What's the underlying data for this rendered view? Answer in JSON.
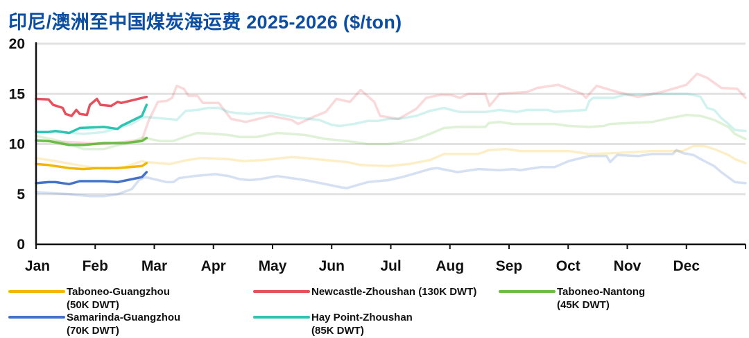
{
  "chart_data": {
    "type": "line",
    "title": "印尼/澳洲至中国煤炭海运费 2025-2026 ($/ton)",
    "xlabel": "",
    "ylabel": "",
    "ylim": [
      0,
      20
    ],
    "yticks": [
      "0",
      "5",
      "10",
      "15",
      "20"
    ],
    "xlim_months": [
      0,
      12
    ],
    "categories": [
      "Jan",
      "Feb",
      "Mar",
      "Apr",
      "May",
      "Jun",
      "Jul",
      "Aug",
      "Sep",
      "Oct",
      "Nov",
      "Dec"
    ],
    "grid": true,
    "legend_position": "bottom",
    "x_unit": "month index (0 = start of Jan)",
    "series": [
      {
        "name": "Taboneo-Guangzhou",
        "name2": "(50K DWT)",
        "color": "#f2b705",
        "year": "2026",
        "points": [
          [
            0,
            8.0
          ],
          [
            0.21,
            7.9
          ],
          [
            0.56,
            7.6
          ],
          [
            0.8,
            7.5
          ],
          [
            1.03,
            7.6
          ],
          [
            1.38,
            7.6
          ],
          [
            1.79,
            7.8
          ],
          [
            1.87,
            8.1
          ]
        ]
      },
      {
        "name": "Newcastle-Zhoushan (130K DWT)",
        "name2": "",
        "color": "#e6505c",
        "year": "2026",
        "points": [
          [
            0,
            14.5
          ],
          [
            0.21,
            14.45
          ],
          [
            0.29,
            13.9
          ],
          [
            0.45,
            13.6
          ],
          [
            0.5,
            13.0
          ],
          [
            0.6,
            12.8
          ],
          [
            0.68,
            13.4
          ],
          [
            0.74,
            13.0
          ],
          [
            0.86,
            12.9
          ],
          [
            0.91,
            13.9
          ],
          [
            1.03,
            14.5
          ],
          [
            1.09,
            13.9
          ],
          [
            1.27,
            13.8
          ],
          [
            1.38,
            14.2
          ],
          [
            1.44,
            14.1
          ],
          [
            1.87,
            14.7
          ]
        ]
      },
      {
        "name": "Taboneo-Nantong",
        "name2": "(45K DWT)",
        "color": "#6cbd45",
        "year": "2026",
        "points": [
          [
            0,
            10.35
          ],
          [
            0.21,
            10.3
          ],
          [
            0.56,
            9.9
          ],
          [
            0.8,
            9.9
          ],
          [
            1.15,
            10.1
          ],
          [
            1.5,
            10.1
          ],
          [
            1.79,
            10.3
          ],
          [
            1.87,
            10.6
          ]
        ]
      },
      {
        "name": "Samarinda-Guangzhou",
        "name2": "(70K DWT)",
        "color": "#4472c8",
        "year": "2026",
        "points": [
          [
            0,
            6.1
          ],
          [
            0.21,
            6.2
          ],
          [
            0.33,
            6.2
          ],
          [
            0.56,
            6.0
          ],
          [
            0.74,
            6.3
          ],
          [
            1.15,
            6.3
          ],
          [
            1.38,
            6.2
          ],
          [
            1.79,
            6.7
          ],
          [
            1.87,
            7.2
          ]
        ]
      },
      {
        "name": "Hay Point-Zhoushan",
        "name2": "(85K DWT)",
        "color": "#2ec4b4",
        "year": "2026",
        "points": [
          [
            0,
            11.2
          ],
          [
            0.21,
            11.2
          ],
          [
            0.33,
            11.3
          ],
          [
            0.56,
            11.1
          ],
          [
            0.74,
            11.6
          ],
          [
            1.15,
            11.7
          ],
          [
            1.38,
            11.5
          ],
          [
            1.44,
            11.8
          ],
          [
            1.79,
            12.8
          ],
          [
            1.87,
            13.9
          ]
        ]
      }
    ],
    "faded_series": [
      {
        "name": "Taboneo-Guangzhou",
        "year": "2025",
        "color": "#f2b705",
        "points": [
          [
            0,
            8.6
          ],
          [
            0.33,
            8.3
          ],
          [
            0.8,
            7.8
          ],
          [
            1.15,
            7.5
          ],
          [
            1.5,
            7.7
          ],
          [
            1.79,
            8.3
          ],
          [
            1.85,
            8.2
          ],
          [
            2.26,
            8.0
          ],
          [
            2.56,
            8.4
          ],
          [
            2.79,
            8.6
          ],
          [
            3.26,
            8.5
          ],
          [
            3.5,
            8.3
          ],
          [
            3.85,
            8.4
          ],
          [
            4.32,
            8.7
          ],
          [
            4.55,
            8.6
          ],
          [
            4.9,
            8.4
          ],
          [
            5.26,
            8.2
          ],
          [
            5.49,
            7.9
          ],
          [
            5.96,
            7.8
          ],
          [
            6.31,
            8.0
          ],
          [
            6.66,
            8.4
          ],
          [
            6.9,
            9.0
          ],
          [
            7.48,
            9.0
          ],
          [
            7.66,
            9.4
          ],
          [
            7.95,
            9.5
          ],
          [
            8.19,
            9.3
          ],
          [
            9.01,
            9.3
          ],
          [
            9.36,
            9.0
          ],
          [
            9.83,
            9.1
          ],
          [
            10.42,
            9.3
          ],
          [
            10.94,
            9.3
          ],
          [
            11.12,
            9.8
          ],
          [
            11.3,
            9.8
          ],
          [
            11.47,
            9.5
          ],
          [
            11.71,
            8.9
          ],
          [
            11.82,
            8.5
          ],
          [
            12.0,
            8.1
          ]
        ]
      },
      {
        "name": "Newcastle-Zhoushan",
        "year": "2025",
        "color": "#e6505c",
        "points": [
          [
            0,
            10.3
          ],
          [
            0.56,
            10.2
          ],
          [
            1.15,
            10.0
          ],
          [
            1.79,
            10.4
          ],
          [
            1.91,
            12.4
          ],
          [
            2.06,
            14.2
          ],
          [
            2.21,
            14.3
          ],
          [
            2.3,
            14.6
          ],
          [
            2.38,
            15.8
          ],
          [
            2.5,
            15.5
          ],
          [
            2.58,
            14.8
          ],
          [
            2.73,
            14.8
          ],
          [
            2.82,
            14.1
          ],
          [
            3.09,
            14.1
          ],
          [
            3.3,
            12.5
          ],
          [
            3.55,
            12.2
          ],
          [
            3.96,
            12.8
          ],
          [
            4.32,
            12.4
          ],
          [
            4.43,
            12.0
          ],
          [
            4.73,
            12.8
          ],
          [
            4.9,
            13.2
          ],
          [
            5.08,
            14.5
          ],
          [
            5.31,
            14.2
          ],
          [
            5.49,
            15.4
          ],
          [
            5.72,
            14.2
          ],
          [
            5.82,
            12.8
          ],
          [
            6.13,
            12.5
          ],
          [
            6.43,
            13.5
          ],
          [
            6.6,
            14.6
          ],
          [
            6.84,
            14.9
          ],
          [
            7.01,
            14.9
          ],
          [
            7.17,
            14.6
          ],
          [
            7.31,
            15.0
          ],
          [
            7.6,
            15.0
          ],
          [
            7.67,
            13.8
          ],
          [
            7.84,
            15.0
          ],
          [
            8.31,
            15.2
          ],
          [
            8.48,
            15.6
          ],
          [
            8.83,
            15.9
          ],
          [
            9.24,
            15.0
          ],
          [
            9.3,
            14.6
          ],
          [
            9.48,
            15.8
          ],
          [
            9.83,
            15.2
          ],
          [
            10.18,
            14.7
          ],
          [
            10.59,
            15.2
          ],
          [
            11.0,
            15.9
          ],
          [
            11.18,
            17.0
          ],
          [
            11.35,
            16.6
          ],
          [
            11.59,
            15.6
          ],
          [
            11.86,
            15.5
          ],
          [
            12.0,
            14.6
          ]
        ]
      },
      {
        "name": "Taboneo-Nantong",
        "year": "2025",
        "color": "#6cbd45",
        "points": [
          [
            0,
            10.8
          ],
          [
            0.33,
            10.4
          ],
          [
            0.56,
            10.0
          ],
          [
            0.8,
            9.5
          ],
          [
            1.15,
            9.5
          ],
          [
            1.33,
            9.8
          ],
          [
            1.62,
            10.2
          ],
          [
            1.79,
            10.6
          ],
          [
            1.85,
            10.6
          ],
          [
            2.09,
            10.3
          ],
          [
            2.32,
            10.3
          ],
          [
            2.56,
            10.8
          ],
          [
            2.73,
            11.1
          ],
          [
            3.03,
            11.0
          ],
          [
            3.26,
            10.9
          ],
          [
            3.44,
            10.7
          ],
          [
            3.73,
            10.7
          ],
          [
            4.08,
            11.1
          ],
          [
            4.32,
            11.0
          ],
          [
            4.55,
            10.9
          ],
          [
            4.9,
            10.5
          ],
          [
            5.26,
            10.3
          ],
          [
            5.61,
            10.0
          ],
          [
            5.96,
            10.0
          ],
          [
            6.19,
            10.2
          ],
          [
            6.43,
            10.5
          ],
          [
            6.66,
            11.0
          ],
          [
            6.9,
            11.6
          ],
          [
            7.13,
            11.7
          ],
          [
            7.6,
            11.7
          ],
          [
            7.66,
            12.1
          ],
          [
            7.84,
            12.2
          ],
          [
            8.07,
            12.0
          ],
          [
            8.77,
            12.0
          ],
          [
            9.01,
            11.8
          ],
          [
            9.36,
            11.7
          ],
          [
            9.6,
            11.8
          ],
          [
            9.71,
            12.0
          ],
          [
            10.42,
            12.2
          ],
          [
            10.65,
            12.5
          ],
          [
            11.0,
            12.9
          ],
          [
            11.24,
            12.8
          ],
          [
            11.47,
            12.4
          ],
          [
            11.71,
            11.7
          ],
          [
            11.82,
            11.0
          ],
          [
            12.0,
            10.5
          ]
        ]
      },
      {
        "name": "Samarinda-Guangzhou",
        "year": "2025",
        "color": "#4472c8",
        "points": [
          [
            0,
            5.2
          ],
          [
            0.56,
            5.0
          ],
          [
            0.91,
            4.8
          ],
          [
            1.15,
            4.8
          ],
          [
            1.38,
            5.0
          ],
          [
            1.62,
            5.5
          ],
          [
            1.74,
            6.4
          ],
          [
            1.85,
            6.7
          ],
          [
            2.21,
            6.2
          ],
          [
            2.32,
            6.2
          ],
          [
            2.42,
            6.6
          ],
          [
            2.67,
            6.8
          ],
          [
            3.03,
            7.0
          ],
          [
            3.26,
            6.8
          ],
          [
            3.44,
            6.5
          ],
          [
            3.61,
            6.4
          ],
          [
            3.79,
            6.5
          ],
          [
            4.08,
            6.8
          ],
          [
            4.55,
            6.4
          ],
          [
            4.9,
            6.0
          ],
          [
            5.14,
            5.7
          ],
          [
            5.26,
            5.6
          ],
          [
            5.37,
            5.8
          ],
          [
            5.61,
            6.2
          ],
          [
            5.96,
            6.4
          ],
          [
            6.19,
            6.7
          ],
          [
            6.43,
            7.1
          ],
          [
            6.66,
            7.5
          ],
          [
            6.78,
            7.6
          ],
          [
            7.13,
            7.2
          ],
          [
            7.48,
            7.5
          ],
          [
            7.84,
            7.4
          ],
          [
            8.07,
            7.5
          ],
          [
            8.19,
            7.4
          ],
          [
            8.54,
            7.7
          ],
          [
            8.77,
            7.7
          ],
          [
            9.01,
            8.3
          ],
          [
            9.36,
            8.8
          ],
          [
            9.65,
            8.8
          ],
          [
            9.71,
            8.2
          ],
          [
            9.83,
            8.9
          ],
          [
            10.18,
            8.8
          ],
          [
            10.42,
            9.0
          ],
          [
            10.77,
            9.0
          ],
          [
            10.83,
            9.4
          ],
          [
            10.94,
            9.1
          ],
          [
            11.12,
            8.9
          ],
          [
            11.24,
            8.5
          ],
          [
            11.47,
            7.8
          ],
          [
            11.59,
            7.2
          ],
          [
            11.82,
            6.2
          ],
          [
            12.0,
            6.1
          ]
        ]
      },
      {
        "name": "Hay Point-Zhoushan",
        "year": "2025",
        "color": "#2ec4b4",
        "points": [
          [
            0,
            11.2
          ],
          [
            0.45,
            11.2
          ],
          [
            0.8,
            11.0
          ],
          [
            1.15,
            11.2
          ],
          [
            1.62,
            12.0
          ],
          [
            1.79,
            12.6
          ],
          [
            1.85,
            12.7
          ],
          [
            2.32,
            12.45
          ],
          [
            2.38,
            12.4
          ],
          [
            2.53,
            13.3
          ],
          [
            2.73,
            13.4
          ],
          [
            2.91,
            13.6
          ],
          [
            3.09,
            13.6
          ],
          [
            3.26,
            13.2
          ],
          [
            3.38,
            13.1
          ],
          [
            3.61,
            13.0
          ],
          [
            3.73,
            13.1
          ],
          [
            3.96,
            13.1
          ],
          [
            4.43,
            12.6
          ],
          [
            4.79,
            12.4
          ],
          [
            5.0,
            11.9
          ],
          [
            5.14,
            11.8
          ],
          [
            5.37,
            12.0
          ],
          [
            5.61,
            12.3
          ],
          [
            5.78,
            12.3
          ],
          [
            5.96,
            12.5
          ],
          [
            6.13,
            12.5
          ],
          [
            6.43,
            12.8
          ],
          [
            6.66,
            13.3
          ],
          [
            6.9,
            13.6
          ],
          [
            7.09,
            13.3
          ],
          [
            7.17,
            13.2
          ],
          [
            7.6,
            13.2
          ],
          [
            7.84,
            13.4
          ],
          [
            8.13,
            13.2
          ],
          [
            8.31,
            13.4
          ],
          [
            8.66,
            13.4
          ],
          [
            8.77,
            13.2
          ],
          [
            9.3,
            13.4
          ],
          [
            9.36,
            14.3
          ],
          [
            9.42,
            14.6
          ],
          [
            9.77,
            14.6
          ],
          [
            9.95,
            14.9
          ],
          [
            10.65,
            15.0
          ],
          [
            11.0,
            15.0
          ],
          [
            11.12,
            14.9
          ],
          [
            11.24,
            14.7
          ],
          [
            11.35,
            13.6
          ],
          [
            11.47,
            13.4
          ],
          [
            11.59,
            12.6
          ],
          [
            11.71,
            12.0
          ],
          [
            11.82,
            11.4
          ],
          [
            12.0,
            11.3
          ]
        ]
      }
    ]
  }
}
